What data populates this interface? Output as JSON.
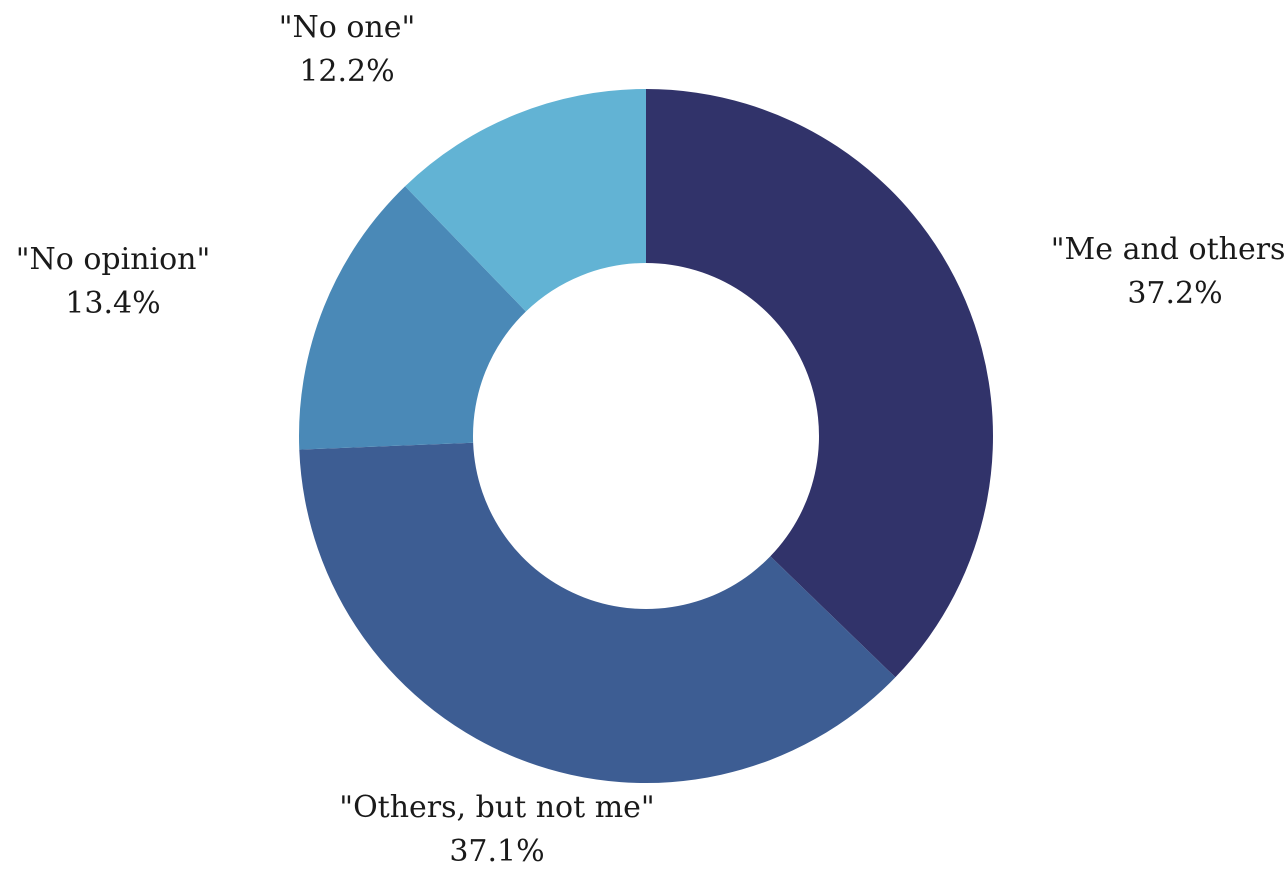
{
  "chart_data": {
    "type": "pie",
    "donut": true,
    "categories": [
      "\"Me and others\"",
      "\"Others, but not me\"",
      "\"No opinion\"",
      "\"No one\""
    ],
    "values": [
      37.2,
      37.1,
      13.4,
      12.2
    ],
    "value_labels": [
      "37.2%",
      "37.1%",
      "13.4%",
      "12.2%"
    ],
    "colors": [
      "#31336a",
      "#3d5d93",
      "#4a89b7",
      "#62b3d4"
    ],
    "start": "12 o'clock",
    "direction": "clockwise",
    "legend": "none"
  }
}
